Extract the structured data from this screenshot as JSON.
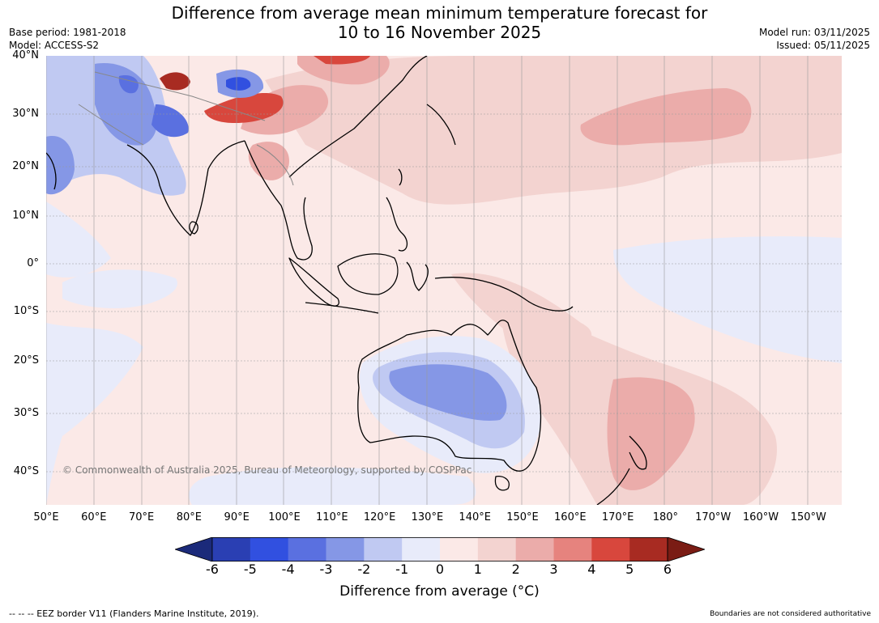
{
  "header": {
    "title_line1": "Difference from average mean minimum temperature forecast for",
    "title_line2": "10 to 16 November 2025",
    "base_period": "Base period: 1981-2018",
    "model": "Model: ACCESS-S2",
    "model_run": "Model run: 03/11/2025",
    "issued": "Issued: 05/11/2025"
  },
  "map": {
    "lat_labels": [
      "40°N",
      "30°N",
      "20°N",
      "10°N",
      "0°",
      "10°S",
      "20°S",
      "30°S",
      "40°S"
    ],
    "lon_labels": [
      "50°E",
      "60°E",
      "70°E",
      "80°E",
      "90°E",
      "100°E",
      "110°E",
      "120°E",
      "130°E",
      "140°E",
      "150°E",
      "160°E",
      "170°E",
      "180°",
      "170°W",
      "160°W",
      "150°W"
    ],
    "copyright": "© Commonwealth of Australia 2025, Bureau of Meteorology, supported by COSPPac"
  },
  "legend": {
    "ticks": [
      "-6",
      "-5",
      "-4",
      "-3",
      "-2",
      "-1",
      "0",
      "1",
      "2",
      "3",
      "4",
      "5",
      "6"
    ],
    "colors": [
      "#1b2a7a",
      "#2a3fb3",
      "#3150e0",
      "#5a70e0",
      "#8597e6",
      "#c0c9f2",
      "#e8ebfa",
      "#fbe9e7",
      "#f3d3d0",
      "#ebacaa",
      "#e6837e",
      "#d8473d",
      "#a82b22",
      "#7a1c14"
    ],
    "label": "Difference from average (°C)"
  },
  "footer": {
    "eez_note": "--  --  -- EEZ border V11 (Flanders Marine Institute, 2019).",
    "boundaries_note": "Boundaries are not considered authoritative"
  }
}
